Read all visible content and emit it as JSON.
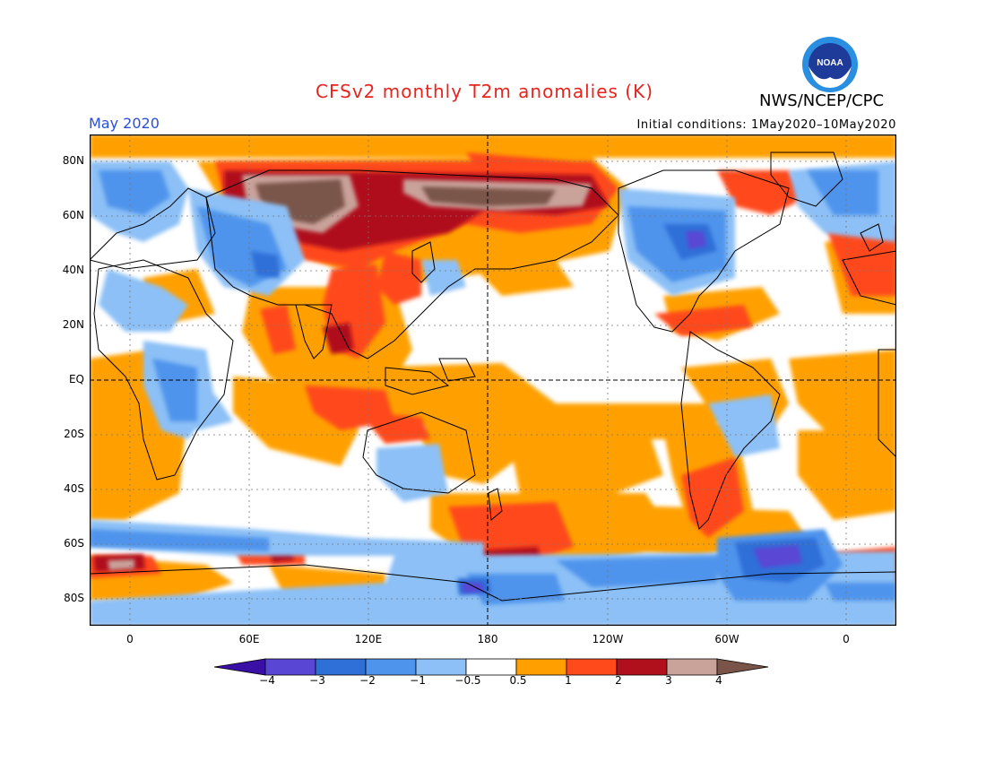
{
  "header": {
    "title": "CFSv2 monthly T2m anomalies (K)",
    "org": "NWS/NCEP/CPC",
    "month": "May 2020",
    "initial_conditions": "Initial conditions: 1May2020–10May2020"
  },
  "logo": {
    "text": "NOAA",
    "icon": "noaa-logo-icon"
  },
  "map": {
    "lat_labels": [
      "80N",
      "60N",
      "40N",
      "20N",
      "EQ",
      "20S",
      "40S",
      "60S",
      "80S"
    ],
    "lon_labels": [
      "0",
      "60E",
      "120E",
      "180",
      "120W",
      "60W",
      "0"
    ]
  },
  "colorbar": {
    "labels": [
      "−4",
      "−3",
      "−2",
      "−1",
      "−0.5",
      "0.5",
      "1",
      "2",
      "3",
      "4"
    ],
    "colors": [
      "#3a0fa6",
      "#5a46d4",
      "#2f6fd8",
      "#4f94ec",
      "#8cc0f6",
      "#ffffff",
      "#ffa000",
      "#ff4a1c",
      "#b0101c",
      "#c9a29a",
      "#7a5448"
    ]
  }
}
